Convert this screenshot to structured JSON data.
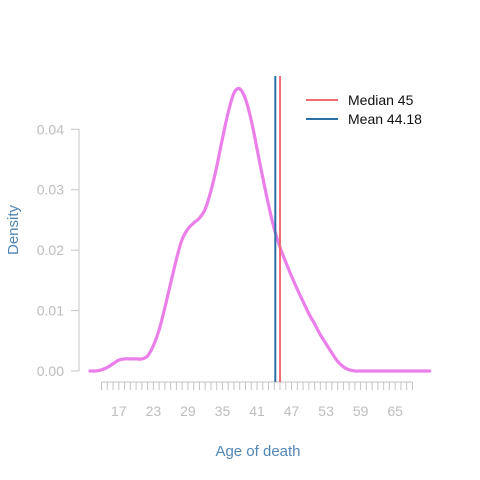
{
  "chart_data": {
    "type": "line",
    "xlabel": "Age of death",
    "ylabel": "Density",
    "xlim": [
      8,
      74
    ],
    "ylim": [
      0,
      0.047
    ],
    "xticks": [
      17,
      23,
      29,
      35,
      41,
      47,
      53,
      59,
      65
    ],
    "xtick_labels": [
      "17",
      "23",
      "29",
      "35",
      "41",
      "47",
      "53",
      "59",
      "65"
    ],
    "x_minor_ticks": [
      14,
      15,
      16,
      17,
      18,
      19,
      20,
      21,
      22,
      23,
      24,
      25,
      26,
      27,
      28,
      29,
      30,
      31,
      32,
      33,
      34,
      35,
      36,
      37,
      38,
      39,
      40,
      41,
      42,
      43,
      44,
      45,
      46,
      47,
      48,
      49,
      50,
      51,
      52,
      53,
      54,
      55,
      56,
      57,
      58,
      59,
      60,
      61,
      62,
      63,
      64,
      65,
      66,
      67,
      68
    ],
    "yticks": [
      0.0,
      0.01,
      0.02,
      0.03,
      0.04
    ],
    "ytick_labels": [
      "0.00",
      "0.01",
      "0.02",
      "0.03",
      "0.04"
    ],
    "grid": false,
    "legend_position": "top-right",
    "series": [
      {
        "color": "#ea7fea",
        "x": [
          12,
          13,
          14,
          15,
          16,
          17,
          18,
          19,
          20,
          21,
          22,
          23,
          24,
          25,
          26,
          27,
          28,
          29,
          30,
          31,
          32,
          33,
          34,
          35,
          36,
          37,
          38,
          39,
          40,
          41,
          42,
          43,
          44,
          45,
          46,
          47,
          48,
          49,
          50,
          51,
          52,
          53,
          54,
          55,
          56,
          57,
          58,
          59,
          60,
          61,
          62,
          63,
          64,
          65,
          66,
          67,
          68,
          69,
          70,
          71
        ],
        "y": [
          0.0,
          0.0,
          0.0002,
          0.0006,
          0.0012,
          0.0018,
          0.002,
          0.002,
          0.002,
          0.002,
          0.0025,
          0.0042,
          0.0068,
          0.0105,
          0.0145,
          0.0185,
          0.0218,
          0.0235,
          0.0245,
          0.0253,
          0.0268,
          0.0298,
          0.0338,
          0.0385,
          0.0428,
          0.046,
          0.0467,
          0.045,
          0.0415,
          0.0368,
          0.032,
          0.0275,
          0.0235,
          0.0205,
          0.018,
          0.0157,
          0.0135,
          0.0115,
          0.0095,
          0.0078,
          0.006,
          0.0045,
          0.003,
          0.0016,
          0.0007,
          0.0002,
          0.0,
          0.0,
          0.0,
          0.0,
          0.0,
          0.0,
          0.0,
          0.0,
          0.0,
          0.0,
          0.0,
          0.0,
          0.0,
          0.0
        ]
      }
    ],
    "vlines": [
      {
        "name": "Median 45",
        "x": 45,
        "color": "#f26c73"
      },
      {
        "name": "Mean 44.18",
        "x": 44.18,
        "color": "#2a6fa6"
      }
    ]
  },
  "legend": {
    "items": [
      {
        "label": "Median 45",
        "color": "#f26c73"
      },
      {
        "label": "Mean 44.18",
        "color": "#2a6fa6"
      }
    ]
  }
}
